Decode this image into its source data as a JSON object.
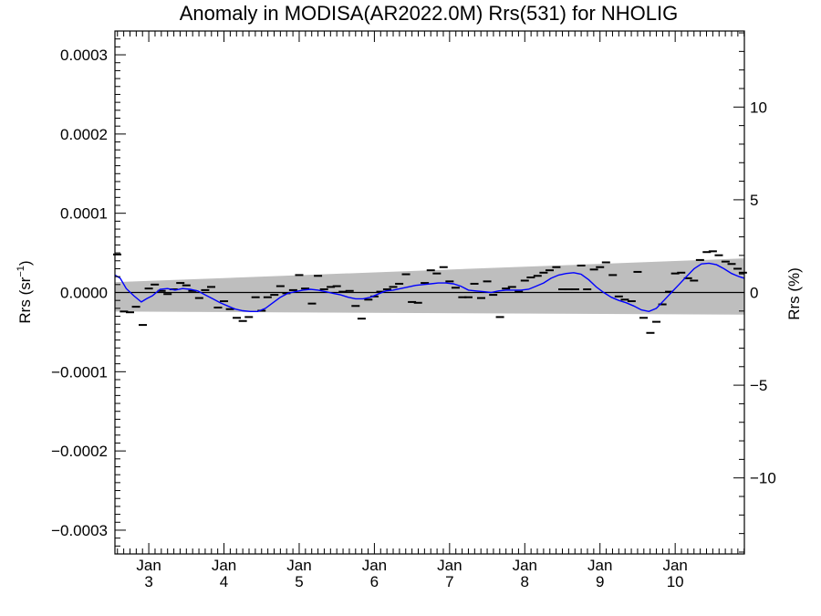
{
  "chart_data": {
    "type": "line",
    "title": "Anomaly in MODISA(AR2022.0M) Rrs(531) for NHOLIG",
    "ylabel_left": "Rrs (sr",
    "ylabel_left_sup": "−1",
    "ylabel_left_close": ")",
    "ylabel_right": "Rrs (%)",
    "x_range": [
      2002.55,
      2010.92
    ],
    "ylim_left": [
      -0.00033,
      0.00033
    ],
    "ylim_right": [
      -14.1,
      14.1
    ],
    "left_ticks": [
      {
        "value": 0.0003,
        "label": "0.0003"
      },
      {
        "value": 0.0002,
        "label": "0.0002"
      },
      {
        "value": 0.0001,
        "label": "0.0001"
      },
      {
        "value": 0.0,
        "label": "0.0000"
      },
      {
        "value": -0.0001,
        "label": "−0.0001"
      },
      {
        "value": -0.0002,
        "label": "−0.0002"
      },
      {
        "value": -0.0003,
        "label": "−0.0003"
      }
    ],
    "right_ticks": [
      {
        "value": 10,
        "label": "10"
      },
      {
        "value": 5,
        "label": "5"
      },
      {
        "value": 0,
        "label": "0"
      },
      {
        "value": -5,
        "label": "−5"
      },
      {
        "value": -10,
        "label": "−10"
      }
    ],
    "x_ticks": [
      {
        "value": 2003,
        "month": "Jan",
        "year": "3"
      },
      {
        "value": 2004,
        "month": "Jan",
        "year": "4"
      },
      {
        "value": 2005,
        "month": "Jan",
        "year": "5"
      },
      {
        "value": 2006,
        "month": "Jan",
        "year": "6"
      },
      {
        "value": 2007,
        "month": "Jan",
        "year": "7"
      },
      {
        "value": 2008,
        "month": "Jan",
        "year": "8"
      },
      {
        "value": 2009,
        "month": "Jan",
        "year": "9"
      },
      {
        "value": 2010,
        "month": "Jan",
        "year": "10"
      }
    ],
    "uncertainty_band": {
      "x": [
        2002.55,
        2010.92
      ],
      "upper": [
        1.3e-05,
        4.3e-05
      ],
      "lower": [
        -2.4e-05,
        -2.8e-05
      ],
      "color": "#bebebe"
    },
    "monthly_points": {
      "color": "#000000",
      "x": [
        2002.58,
        2002.67,
        2002.75,
        2002.83,
        2002.92,
        2003.0,
        2003.08,
        2003.17,
        2003.25,
        2003.33,
        2003.42,
        2003.5,
        2003.58,
        2003.67,
        2003.75,
        2003.83,
        2003.92,
        2004.0,
        2004.08,
        2004.17,
        2004.25,
        2004.33,
        2004.42,
        2004.5,
        2004.58,
        2004.67,
        2004.75,
        2004.83,
        2004.92,
        2005.0,
        2005.08,
        2005.17,
        2005.25,
        2005.33,
        2005.42,
        2005.5,
        2005.58,
        2005.67,
        2005.75,
        2005.83,
        2005.92,
        2006.0,
        2006.08,
        2006.17,
        2006.25,
        2006.33,
        2006.42,
        2006.5,
        2006.58,
        2006.67,
        2006.75,
        2006.83,
        2006.92,
        2007.0,
        2007.08,
        2007.17,
        2007.25,
        2007.33,
        2007.42,
        2007.5,
        2007.58,
        2007.67,
        2007.75,
        2007.83,
        2007.92,
        2008.0,
        2008.08,
        2008.17,
        2008.25,
        2008.33,
        2008.42,
        2008.5,
        2008.58,
        2008.67,
        2008.75,
        2008.83,
        2008.92,
        2009.0,
        2009.08,
        2009.17,
        2009.25,
        2009.33,
        2009.42,
        2009.5,
        2009.58,
        2009.67,
        2009.75,
        2009.83,
        2009.92,
        2010.0,
        2010.08,
        2010.17,
        2010.25,
        2010.33,
        2010.42,
        2010.5,
        2010.58,
        2010.67,
        2010.75,
        2010.83,
        2010.9
      ],
      "y": [
        4.8e-05,
        -2.4e-05,
        -2.5e-05,
        -1.8e-05,
        -4.1e-05,
        5e-06,
        1e-05,
        2e-06,
        -2e-06,
        4e-06,
        1.2e-05,
        9e-06,
        2e-06,
        -7e-06,
        3e-06,
        7e-06,
        -1.9e-05,
        -1.1e-05,
        -2.1e-05,
        -3.2e-05,
        -3.6e-05,
        -3.1e-05,
        -6e-06,
        -2.3e-05,
        -6e-06,
        -3e-06,
        8e-06,
        -1e-06,
        3e-06,
        2.2e-05,
        5e-06,
        -1.4e-05,
        2.1e-05,
        4e-06,
        7e-06,
        8e-06,
        1e-06,
        2e-06,
        -1.7e-05,
        -3.3e-05,
        -9e-06,
        -5e-06,
        1e-06,
        4e-06,
        7e-06,
        1.1e-05,
        2.3e-05,
        -1.2e-05,
        -1.3e-05,
        1.2e-05,
        2.8e-05,
        2.4e-05,
        3.2e-05,
        1.4e-05,
        6e-06,
        -6e-06,
        -6e-06,
        1.1e-05,
        -7e-06,
        1.4e-05,
        -3e-06,
        -3.1e-05,
        5e-06,
        7e-06,
        1e-06,
        1.5e-05,
        1.9e-05,
        2.1e-05,
        2.5e-05,
        2.8e-05,
        3.2e-05,
        4e-06,
        4e-06,
        4e-06,
        3.4e-05,
        4e-06,
        2.9e-05,
        3.2e-05,
        3.8e-05,
        2.2e-05,
        -5e-06,
        -9e-06,
        -1.1e-05,
        2.6e-05,
        -3.2e-05,
        -5.1e-05,
        -3.7e-05,
        -1.5e-05,
        1e-06,
        2.4e-05,
        2.5e-05,
        1.8e-05,
        1.5e-05,
        4.1e-05,
        5.1e-05,
        5.2e-05,
        4.7e-05,
        3.9e-05,
        3.6e-05,
        3e-05,
        2.5e-05
      ]
    },
    "smoothed_series": {
      "color": "#0000ff",
      "x": [
        2002.55,
        2002.62,
        2002.7,
        2002.8,
        2002.9,
        2002.97,
        2003.05,
        2003.15,
        2003.25,
        2003.35,
        2003.45,
        2003.55,
        2003.65,
        2003.75,
        2003.85,
        2003.95,
        2004.05,
        2004.15,
        2004.25,
        2004.35,
        2004.45,
        2004.55,
        2004.65,
        2004.75,
        2004.85,
        2004.95,
        2005.05,
        2005.15,
        2005.25,
        2005.35,
        2005.45,
        2005.55,
        2005.65,
        2005.75,
        2005.85,
        2005.95,
        2006.05,
        2006.15,
        2006.25,
        2006.35,
        2006.45,
        2006.55,
        2006.65,
        2006.75,
        2006.85,
        2006.95,
        2007.05,
        2007.15,
        2007.25,
        2007.35,
        2007.45,
        2007.55,
        2007.65,
        2007.75,
        2007.85,
        2007.95,
        2008.05,
        2008.15,
        2008.25,
        2008.35,
        2008.45,
        2008.55,
        2008.65,
        2008.75,
        2008.85,
        2008.95,
        2009.05,
        2009.15,
        2009.25,
        2009.35,
        2009.45,
        2009.55,
        2009.65,
        2009.75,
        2009.85,
        2009.95,
        2010.05,
        2010.15,
        2010.25,
        2010.35,
        2010.45,
        2010.55,
        2010.65,
        2010.75,
        2010.85,
        2010.92
      ],
      "y": [
        2.2e-05,
        1.8e-05,
        5e-06,
        -4e-06,
        -1.2e-05,
        -8e-06,
        -4e-06,
        4e-06,
        5e-06,
        3e-06,
        5e-06,
        4e-06,
        2e-06,
        -3e-06,
        -8e-06,
        -1.3e-05,
        -1.7e-05,
        -2.1e-05,
        -2.3e-05,
        -2.4e-05,
        -2.4e-05,
        -2e-05,
        -1.3e-05,
        -6e-06,
        -1e-06,
        1e-06,
        3e-06,
        4e-06,
        3e-06,
        1e-06,
        -1e-06,
        -3e-06,
        -6e-06,
        -8e-06,
        -8e-06,
        -6e-06,
        -2e-06,
        2e-06,
        3e-06,
        5e-06,
        7e-06,
        9e-06,
        1e-05,
        1.1e-05,
        1.2e-05,
        1.2e-05,
        1.1e-05,
        8e-06,
        3e-06,
        2e-06,
        1e-06,
        0.0,
        2e-06,
        3e-06,
        3e-06,
        3e-06,
        4e-06,
        8e-06,
        1.2e-05,
        1.8e-05,
        2.2e-05,
        2.4e-05,
        2.5e-05,
        2.3e-05,
        1.6e-05,
        7e-06,
        0.0,
        -6e-06,
        -1e-05,
        -1.3e-05,
        -1.7e-05,
        -2.2e-05,
        -2.4e-05,
        -2e-05,
        -1e-05,
        0.0,
        1e-05,
        2e-05,
        3e-05,
        3.6e-05,
        3.7e-05,
        3.5e-05,
        3e-05,
        2.4e-05,
        2e-05,
        1.8e-05
      ]
    },
    "zero_line": {
      "value": 0,
      "color": "#000000"
    },
    "grid": false,
    "legend": "none"
  }
}
